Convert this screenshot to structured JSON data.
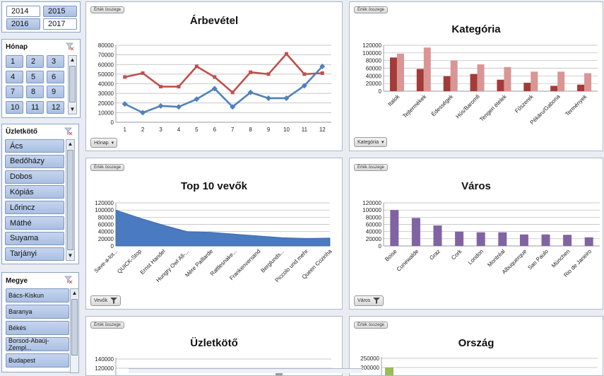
{
  "slicer_ev": {
    "items": [
      "2014",
      "2015",
      "2016",
      "2017"
    ]
  },
  "slicer_honap": {
    "title": "Hónap",
    "items": [
      "1",
      "2",
      "3",
      "4",
      "5",
      "6",
      "7",
      "8",
      "9",
      "10",
      "11",
      "12"
    ]
  },
  "slicer_uzletkoto": {
    "title": "Üzletkötő",
    "items": [
      "Ács",
      "Bedőházy",
      "Dobos",
      "Kópiás",
      "Lőrincz",
      "Máthé",
      "Suyama",
      "Tarjányi"
    ]
  },
  "slicer_megye": {
    "title": "Megye",
    "items": [
      "Bács-Kiskun",
      "Baranya",
      "Békés",
      "Borsod-Abaúj-Zempl...",
      "Budapest"
    ]
  },
  "panels": {
    "p1": {
      "field": "Érték összege",
      "dropdown": "Hónap"
    },
    "p2": {
      "field": "Érték összege",
      "dropdown": "Kategória"
    },
    "p3": {
      "field": "Érték összege",
      "dropdown": "Vevők"
    },
    "p4": {
      "field": "Érték összege",
      "dropdown": "Város"
    },
    "p5": {
      "field": "Érték összege"
    },
    "p6": {
      "field": "Érték összege"
    }
  },
  "colors": {
    "red": "#c0504d",
    "blue": "#4f81bd",
    "darkred": "#a33b38",
    "pink": "#d99694",
    "purple": "#8064a2",
    "area": "#4a7ac0",
    "green": "#9bbb59"
  },
  "chart_data": [
    {
      "type": "line",
      "title": "Árbevétel",
      "x": [
        "1",
        "2",
        "3",
        "4",
        "5",
        "6",
        "7",
        "8",
        "9",
        "10",
        "11",
        "12"
      ],
      "ylim": [
        0,
        80000
      ],
      "yticks": [
        "0",
        "10000",
        "20000",
        "30000",
        "40000",
        "50000",
        "60000",
        "70000",
        "80000"
      ],
      "series": [
        {
          "name": "piros",
          "values": [
            47000,
            51000,
            37000,
            37000,
            58000,
            47000,
            31000,
            52000,
            50000,
            71000,
            50000,
            51000
          ]
        },
        {
          "name": "kék",
          "values": [
            19000,
            10000,
            17000,
            16000,
            24000,
            35000,
            16000,
            31000,
            25000,
            25000,
            38000,
            58000
          ]
        }
      ]
    },
    {
      "type": "bar",
      "title": "Kategória",
      "categories": [
        "Italok",
        "Tejtermékek",
        "Édességek",
        "Hús/Baromfi",
        "Tengeri ételek",
        "Fűszerek",
        "Pékáru/Gabona",
        "Termények"
      ],
      "ylim": [
        0,
        120000
      ],
      "yticks": [
        "0",
        "20000",
        "40000",
        "60000",
        "80000",
        "100000",
        "120000"
      ],
      "series": [
        {
          "name": "sötét",
          "values": [
            88000,
            58000,
            39000,
            45000,
            30000,
            22000,
            14000,
            17000
          ]
        },
        {
          "name": "világos",
          "values": [
            98000,
            114000,
            80000,
            70000,
            63000,
            51000,
            51000,
            47000
          ]
        }
      ]
    },
    {
      "type": "area",
      "title": "Top 10 vevők",
      "categories": [
        "Save-a-lot...",
        "QUICK-Stop",
        "Ernst Handel",
        "Hungry Owl All-...",
        "Mère Paillarde",
        "Rattlesnake...",
        "Frankenversand",
        "Berglunds...",
        "Piccolo und mehr",
        "Queen Cozinha"
      ],
      "values": [
        100000,
        78000,
        58000,
        40000,
        38000,
        33000,
        28000,
        23000,
        21000,
        22000
      ],
      "ylim": [
        0,
        120000
      ],
      "yticks": [
        "0",
        "20000",
        "40000",
        "60000",
        "80000",
        "100000",
        "120000"
      ]
    },
    {
      "type": "bar",
      "title": "Város",
      "categories": [
        "Boise",
        "Cunewalde",
        "Graz",
        "Cork",
        "London",
        "Montréal",
        "Albuquerque",
        "Sao Paulo",
        "München",
        "Rio de Janeiro"
      ],
      "values": [
        100000,
        78000,
        57000,
        40000,
        38000,
        38000,
        32000,
        32000,
        31000,
        24000
      ],
      "ylim": [
        0,
        120000
      ],
      "yticks": [
        "0",
        "20000",
        "40000",
        "60000",
        "80000",
        "100000",
        "120000"
      ]
    },
    {
      "type": "bar",
      "title": "Üzletkötő",
      "yticks": [
        "140000",
        "120000"
      ],
      "ylim": [
        0,
        140000
      ]
    },
    {
      "type": "bar",
      "title": "Ország",
      "yticks": [
        "250000",
        "200000"
      ],
      "ylim": [
        0,
        250000
      ]
    }
  ]
}
